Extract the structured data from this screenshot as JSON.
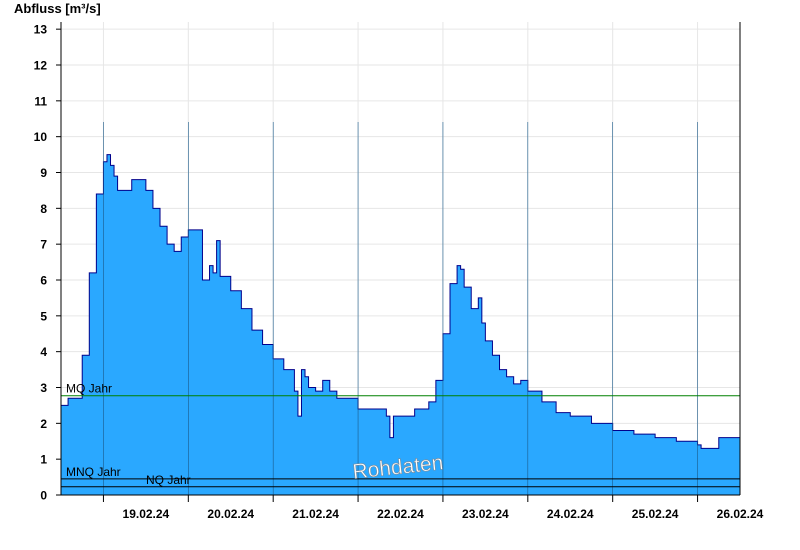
{
  "chart_data": {
    "type": "area",
    "ylabel": "Abfluss [m³/s]",
    "ylim": [
      0,
      13.2
    ],
    "yticks": [
      "0",
      "1",
      "2",
      "3",
      "4",
      "5",
      "6",
      "7",
      "8",
      "9",
      "10",
      "11",
      "12",
      "13"
    ],
    "xlim": [
      "2024-02-18T12:00",
      "2024-02-26T12:00"
    ],
    "xticks": [
      "19.02.24",
      "20.02.24",
      "21.02.24",
      "22.02.24",
      "23.02.24",
      "24.02.24",
      "25.02.24",
      "26.02.24"
    ],
    "grid": true,
    "watermark": "Rohdaten",
    "colors": {
      "fill": "#2aa8ff",
      "line": "#00008b",
      "mq": "#008000",
      "mnq": "#000000",
      "nq": "#000000"
    },
    "reference_lines": [
      {
        "label": "MQ Jahr",
        "value": 2.77
      },
      {
        "label": "MNQ Jahr",
        "value": 0.45
      },
      {
        "label": "NQ Jahr",
        "value": 0.23
      }
    ],
    "series": [
      {
        "x": [
          "2024-02-18T12:00",
          "2024-02-18T14:00",
          "2024-02-18T18:00",
          "2024-02-18T20:00",
          "2024-02-18T22:00",
          "2024-02-19T00:00",
          "2024-02-19T01:00",
          "2024-02-19T02:00",
          "2024-02-19T03:00",
          "2024-02-19T04:00",
          "2024-02-19T06:00",
          "2024-02-19T08:00",
          "2024-02-19T10:00",
          "2024-02-19T12:00",
          "2024-02-19T14:00",
          "2024-02-19T16:00",
          "2024-02-19T18:00",
          "2024-02-19T20:00",
          "2024-02-19T22:00",
          "2024-02-20T00:00",
          "2024-02-20T02:00",
          "2024-02-20T04:00",
          "2024-02-20T06:00",
          "2024-02-20T07:00",
          "2024-02-20T08:00",
          "2024-02-20T09:00",
          "2024-02-20T10:00",
          "2024-02-20T12:00",
          "2024-02-20T15:00",
          "2024-02-20T18:00",
          "2024-02-20T21:00",
          "2024-02-21T00:00",
          "2024-02-21T03:00",
          "2024-02-21T06:00",
          "2024-02-21T07:00",
          "2024-02-21T08:00",
          "2024-02-21T09:00",
          "2024-02-21T10:00",
          "2024-02-21T12:00",
          "2024-02-21T14:00",
          "2024-02-21T16:00",
          "2024-02-21T18:00",
          "2024-02-21T20:00",
          "2024-02-21T22:00",
          "2024-02-22T00:00",
          "2024-02-22T04:00",
          "2024-02-22T08:00",
          "2024-02-22T09:00",
          "2024-02-22T10:00",
          "2024-02-22T12:00",
          "2024-02-22T14:00",
          "2024-02-22T16:00",
          "2024-02-22T18:00",
          "2024-02-22T20:00",
          "2024-02-22T22:00",
          "2024-02-23T00:00",
          "2024-02-23T02:00",
          "2024-02-23T04:00",
          "2024-02-23T05:00",
          "2024-02-23T06:00",
          "2024-02-23T08:00",
          "2024-02-23T10:00",
          "2024-02-23T11:00",
          "2024-02-23T12:00",
          "2024-02-23T14:00",
          "2024-02-23T16:00",
          "2024-02-23T18:00",
          "2024-02-23T20:00",
          "2024-02-23T22:00",
          "2024-02-24T00:00",
          "2024-02-24T04:00",
          "2024-02-24T08:00",
          "2024-02-24T12:00",
          "2024-02-24T18:00",
          "2024-02-25T00:00",
          "2024-02-25T06:00",
          "2024-02-25T12:00",
          "2024-02-25T18:00",
          "2024-02-26T00:00",
          "2024-02-26T01:00",
          "2024-02-26T02:00",
          "2024-02-26T06:00",
          "2024-02-26T12:00"
        ],
        "values": [
          2.5,
          2.7,
          3.9,
          6.2,
          8.4,
          9.3,
          9.5,
          9.2,
          8.9,
          8.5,
          8.5,
          8.8,
          8.8,
          8.5,
          8.0,
          7.5,
          7.0,
          6.8,
          7.2,
          7.4,
          7.4,
          6.0,
          6.4,
          6.2,
          7.1,
          6.1,
          6.1,
          5.7,
          5.2,
          4.6,
          4.2,
          3.8,
          3.5,
          2.9,
          2.2,
          3.5,
          3.3,
          3.0,
          2.9,
          3.2,
          2.9,
          2.7,
          2.7,
          2.7,
          2.4,
          2.4,
          2.2,
          1.6,
          2.2,
          2.2,
          2.2,
          2.4,
          2.4,
          2.6,
          3.2,
          4.5,
          5.9,
          6.4,
          6.3,
          5.8,
          5.2,
          5.5,
          4.8,
          4.3,
          3.9,
          3.5,
          3.3,
          3.1,
          3.2,
          2.9,
          2.6,
          2.3,
          2.2,
          2.0,
          1.8,
          1.7,
          1.6,
          1.5,
          1.4,
          1.3,
          1.3,
          1.6,
          1.5
        ]
      }
    ]
  }
}
